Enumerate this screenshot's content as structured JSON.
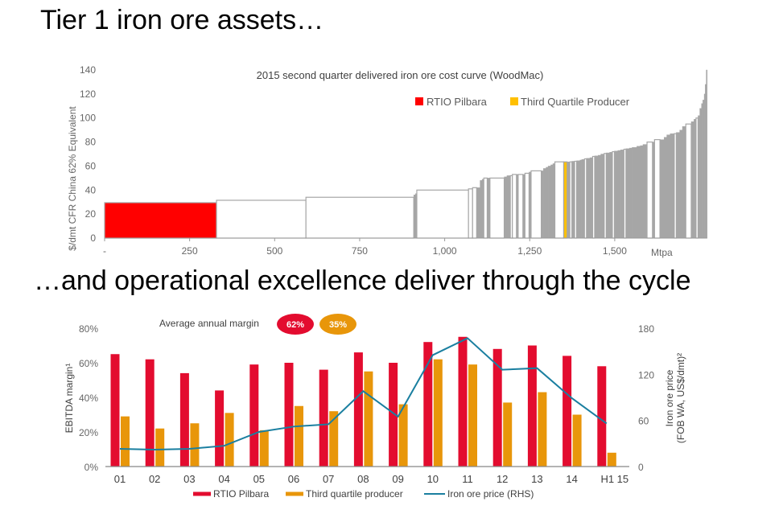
{
  "page": {
    "heading_top": "Tier 1 iron ore assets…",
    "heading_bottom": "…and operational excellence deliver through the cycle"
  },
  "colors": {
    "rtio_red": "#ff0000",
    "third_quartile_yellow": "#ffc000",
    "curve_gray": "#a6a6a6",
    "bar_red": "#e30c2f",
    "bar_orange": "#e8960a",
    "line_teal": "#1a7fa0",
    "axis_text": "#666666"
  },
  "chart_data": [
    {
      "id": "cost_curve",
      "type": "bar",
      "subtype": "cost-curve (variable-width step bars)",
      "title": "2015 second quarter delivered iron ore cost curve (WoodMac)",
      "xlabel": "Mtpa",
      "ylabel": "$/dmt CFR China 62% Equivalent",
      "xlim": [
        0,
        1690
      ],
      "ylim": [
        0,
        140
      ],
      "x_ticks": [
        0,
        250,
        500,
        750,
        1000,
        1250,
        1500
      ],
      "x_tick_labels": [
        "-",
        "250",
        "500",
        "750",
        "1,000",
        "1,250",
        "1,500"
      ],
      "y_ticks": [
        0,
        20,
        40,
        60,
        80,
        100,
        120,
        140
      ],
      "y_tick_labels": [
        "0",
        "20",
        "40",
        "60",
        "80",
        "100",
        "120",
        "140"
      ],
      "grid": false,
      "legend": {
        "position": "top-right",
        "entries": [
          {
            "label": "RTIO Pilbara",
            "category": "rtio"
          },
          {
            "label": "Third Quartile Producer",
            "category": "q3"
          }
        ]
      },
      "segment_fields": [
        "capacity_mtpa",
        "cost_usd_dmt",
        "category"
      ],
      "segments": [
        [
          329,
          29.5,
          "rtio"
        ],
        [
          263,
          31.5,
          "white"
        ],
        [
          317,
          34,
          "white"
        ],
        [
          5,
          36,
          "gray"
        ],
        [
          4,
          37,
          "gray"
        ],
        [
          152,
          40,
          "white"
        ],
        [
          12,
          41,
          "white"
        ],
        [
          12,
          42,
          "white"
        ],
        [
          10,
          42,
          "gray"
        ],
        [
          6,
          48,
          "gray"
        ],
        [
          5,
          49,
          "gray"
        ],
        [
          10,
          50,
          "white"
        ],
        [
          8,
          50,
          "gray"
        ],
        [
          42,
          50,
          "white"
        ],
        [
          8,
          51,
          "gray"
        ],
        [
          10,
          52,
          "gray"
        ],
        [
          6,
          52,
          "white"
        ],
        [
          12,
          53,
          "white"
        ],
        [
          5,
          53,
          "gray"
        ],
        [
          14,
          53,
          "white"
        ],
        [
          6,
          53,
          "gray"
        ],
        [
          12,
          54,
          "white"
        ],
        [
          6,
          55,
          "gray"
        ],
        [
          30,
          56,
          "white"
        ],
        [
          6,
          56,
          "gray"
        ],
        [
          8,
          58,
          "gray"
        ],
        [
          6,
          59,
          "gray"
        ],
        [
          8,
          60,
          "gray"
        ],
        [
          6,
          61,
          "gray"
        ],
        [
          6,
          62,
          "gray"
        ],
        [
          26,
          63.5,
          "white"
        ],
        [
          10,
          63.5,
          "q3"
        ],
        [
          8,
          63.5,
          "gray"
        ],
        [
          6,
          63.5,
          "white"
        ],
        [
          8,
          64,
          "gray"
        ],
        [
          6,
          64,
          "white"
        ],
        [
          10,
          64.5,
          "gray"
        ],
        [
          5,
          65,
          "gray"
        ],
        [
          8,
          65.5,
          "gray"
        ],
        [
          6,
          66,
          "white"
        ],
        [
          10,
          66.5,
          "gray"
        ],
        [
          8,
          67,
          "gray"
        ],
        [
          6,
          68,
          "white"
        ],
        [
          10,
          68.5,
          "gray"
        ],
        [
          8,
          69,
          "gray"
        ],
        [
          10,
          70,
          "gray"
        ],
        [
          6,
          70.5,
          "white"
        ],
        [
          10,
          71,
          "gray"
        ],
        [
          8,
          71.5,
          "gray"
        ],
        [
          6,
          72,
          "white"
        ],
        [
          10,
          72.5,
          "gray"
        ],
        [
          8,
          73,
          "gray"
        ],
        [
          10,
          73.5,
          "gray"
        ],
        [
          6,
          74,
          "white"
        ],
        [
          10,
          74.5,
          "gray"
        ],
        [
          8,
          75,
          "gray"
        ],
        [
          14,
          75.5,
          "gray"
        ],
        [
          10,
          76.5,
          "gray"
        ],
        [
          8,
          77,
          "gray"
        ],
        [
          12,
          78,
          "gray"
        ],
        [
          16,
          80,
          "white"
        ],
        [
          6,
          80,
          "gray"
        ],
        [
          16,
          82,
          "white"
        ],
        [
          12,
          82,
          "gray"
        ],
        [
          8,
          84,
          "gray"
        ],
        [
          10,
          86,
          "gray"
        ],
        [
          12,
          87,
          "gray"
        ],
        [
          6,
          87,
          "white"
        ],
        [
          10,
          88,
          "gray"
        ],
        [
          8,
          90,
          "gray"
        ],
        [
          10,
          93,
          "gray"
        ],
        [
          16,
          95,
          "white"
        ],
        [
          8,
          97,
          "gray"
        ],
        [
          6,
          99,
          "gray"
        ],
        [
          6,
          100,
          "white"
        ],
        [
          5,
          102,
          "gray"
        ],
        [
          5,
          108,
          "gray"
        ],
        [
          4,
          112,
          "gray"
        ],
        [
          4,
          115,
          "gray"
        ],
        [
          3,
          120,
          "gray"
        ],
        [
          3,
          128,
          "gray"
        ],
        [
          3,
          140,
          "gray"
        ]
      ]
    },
    {
      "id": "ebitda_margin",
      "type": "bar",
      "subtype": "grouped bar + line (secondary axis)",
      "title": "",
      "categories": [
        "01",
        "02",
        "03",
        "04",
        "05",
        "06",
        "07",
        "08",
        "09",
        "10",
        "11",
        "12",
        "13",
        "14",
        "H1 15"
      ],
      "series": [
        {
          "name": "RTIO Pilbara",
          "type": "bar",
          "axis": "left",
          "color_key": "bar_red",
          "values": [
            65,
            62,
            54,
            44,
            59,
            60,
            56,
            66,
            60,
            72,
            75,
            68,
            70,
            64,
            58
          ]
        },
        {
          "name": "Third quartile producer",
          "type": "bar",
          "axis": "left",
          "color_key": "bar_orange",
          "values": [
            29,
            22,
            25,
            31,
            21,
            35,
            32,
            55,
            36,
            62,
            59,
            37,
            43,
            30,
            8
          ]
        },
        {
          "name": "Iron ore price (RHS)",
          "type": "line",
          "axis": "right",
          "color_key": "line_teal",
          "values": [
            23,
            22,
            23,
            27,
            45,
            52,
            55,
            98,
            65,
            145,
            167,
            126,
            128,
            89,
            56
          ]
        }
      ],
      "ylabel": "EBITDA margin¹",
      "ylim": [
        0,
        80
      ],
      "y_ticks": [
        0,
        20,
        40,
        60,
        80
      ],
      "y_tick_labels": [
        "0%",
        "20%",
        "40%",
        "60%",
        "80%"
      ],
      "y2label_line1": "Iron ore price",
      "y2label_line2": "(FOB WA, US$/dmt)²",
      "y2lim": [
        0,
        180
      ],
      "y2_ticks": [
        0,
        60,
        120,
        180
      ],
      "y2_tick_labels": [
        "0",
        "60",
        "120",
        "180"
      ],
      "grid": false,
      "legend": {
        "position": "bottom"
      },
      "annotation": {
        "label": "Average annual margin",
        "badges": [
          {
            "value": "62%",
            "color_key": "bar_red"
          },
          {
            "value": "35%",
            "color_key": "bar_orange"
          }
        ]
      }
    }
  ]
}
